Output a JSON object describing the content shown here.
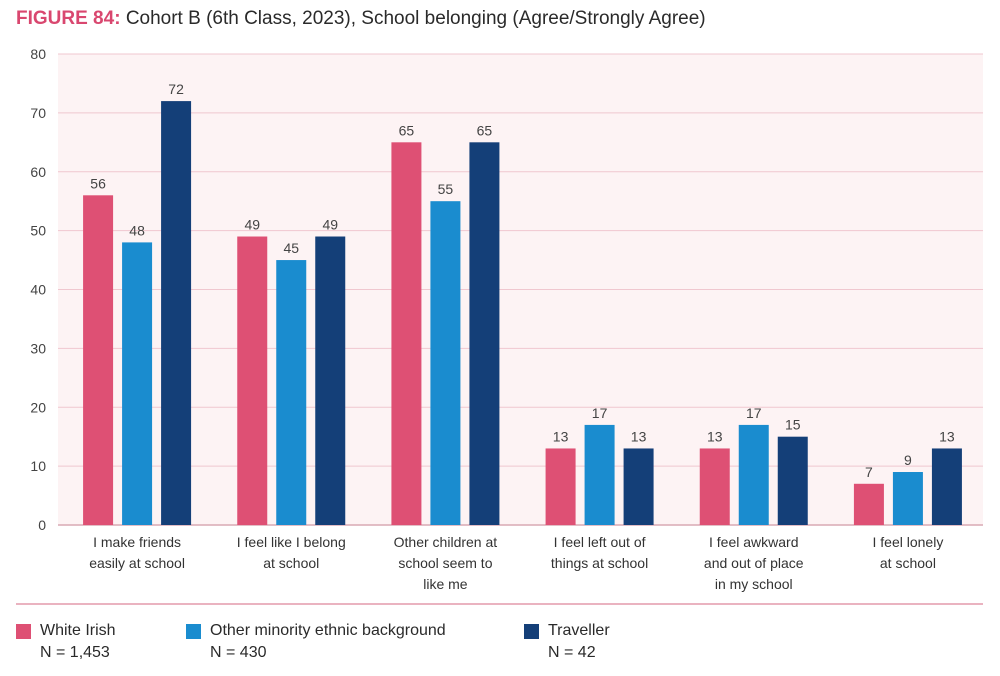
{
  "title": {
    "figure_label": "FIGURE 84:",
    "text": "Cohort B (6th Class, 2023), School belonging (Agree/Strongly Agree)"
  },
  "colors": {
    "white_irish": "#de5074",
    "other_minority": "#1a8ccf",
    "traveller": "#143f78",
    "grid": "#f0c7cf",
    "plot_bg": "#fdf3f4"
  },
  "chart_data": {
    "type": "bar",
    "title": "Cohort B (6th Class, 2023), School belonging (Agree/Strongly Agree)",
    "xlabel": "",
    "ylabel": "",
    "ylim": [
      0,
      80
    ],
    "yticks": [
      0,
      10,
      20,
      30,
      40,
      50,
      60,
      70,
      80
    ],
    "categories": [
      [
        "I make friends",
        "easily at school"
      ],
      [
        "I feel like I belong",
        "at school"
      ],
      [
        "Other children at",
        "school seem to",
        "like me"
      ],
      [
        "I feel left out of",
        "things at school"
      ],
      [
        "I feel awkward",
        "and out of place",
        "in my school"
      ],
      [
        "I feel lonely",
        "at school"
      ]
    ],
    "series": [
      {
        "name": "White Irish",
        "n_label": "N = 1,453",
        "color": "#de5074",
        "values": [
          56,
          49,
          65,
          13,
          13,
          7
        ]
      },
      {
        "name": "Other minority ethnic background",
        "n_label": "N = 430",
        "color": "#1a8ccf",
        "values": [
          48,
          45,
          55,
          17,
          17,
          9
        ]
      },
      {
        "name": "Traveller",
        "n_label": "N = 42",
        "color": "#143f78",
        "values": [
          72,
          49,
          65,
          13,
          15,
          13
        ]
      }
    ],
    "legend_position": "bottom"
  }
}
